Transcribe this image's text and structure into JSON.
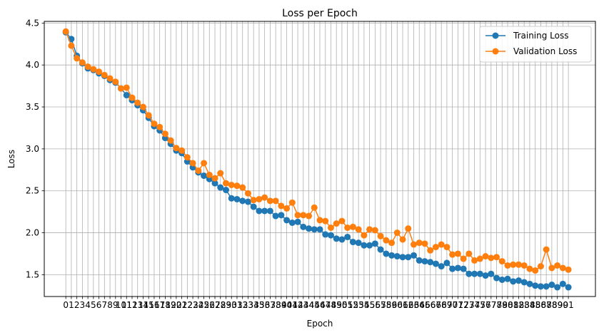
{
  "chart_data": {
    "type": "line",
    "title": "Loss per Epoch",
    "xlabel": "Epoch",
    "ylabel": "Loss",
    "ylim": [
      1.24,
      4.52
    ],
    "xlim": [
      -3.9,
      95.9
    ],
    "yticks": [
      1.5,
      2.0,
      2.5,
      3.0,
      3.5,
      4.0,
      4.5
    ],
    "grid": true,
    "legend_position": "top-right",
    "series": [
      {
        "name": "Training Loss",
        "color": "#1f77b4",
        "values": [
          4.39,
          4.31,
          4.11,
          4.02,
          3.96,
          3.94,
          3.9,
          3.87,
          3.82,
          3.79,
          3.72,
          3.64,
          3.58,
          3.52,
          3.46,
          3.37,
          3.27,
          3.22,
          3.13,
          3.06,
          2.98,
          2.95,
          2.85,
          2.78,
          2.72,
          2.68,
          2.64,
          2.59,
          2.54,
          2.51,
          2.41,
          2.4,
          2.38,
          2.37,
          2.31,
          2.26,
          2.26,
          2.26,
          2.2,
          2.21,
          2.15,
          2.12,
          2.13,
          2.07,
          2.05,
          2.04,
          2.04,
          1.98,
          1.97,
          1.93,
          1.92,
          1.95,
          1.89,
          1.88,
          1.85,
          1.85,
          1.87,
          1.8,
          1.75,
          1.73,
          1.72,
          1.71,
          1.71,
          1.73,
          1.67,
          1.66,
          1.65,
          1.63,
          1.6,
          1.64,
          1.57,
          1.58,
          1.57,
          1.51,
          1.51,
          1.51,
          1.49,
          1.51,
          1.46,
          1.44,
          1.45,
          1.42,
          1.43,
          1.41,
          1.39,
          1.37,
          1.36,
          1.36,
          1.38,
          1.35,
          1.39,
          1.35
        ]
      },
      {
        "name": "Validation Loss",
        "color": "#ff7f0e",
        "values": [
          4.4,
          4.23,
          4.08,
          4.03,
          3.98,
          3.95,
          3.92,
          3.88,
          3.84,
          3.8,
          3.72,
          3.73,
          3.61,
          3.55,
          3.5,
          3.4,
          3.3,
          3.26,
          3.18,
          3.1,
          3.01,
          2.98,
          2.9,
          2.83,
          2.74,
          2.83,
          2.69,
          2.65,
          2.71,
          2.59,
          2.57,
          2.56,
          2.54,
          2.47,
          2.39,
          2.4,
          2.42,
          2.38,
          2.38,
          2.32,
          2.29,
          2.36,
          2.21,
          2.21,
          2.2,
          2.3,
          2.15,
          2.14,
          2.06,
          2.11,
          2.14,
          2.06,
          2.07,
          2.04,
          1.97,
          2.04,
          2.03,
          1.96,
          1.91,
          1.88,
          2.0,
          1.92,
          2.05,
          1.86,
          1.88,
          1.87,
          1.79,
          1.83,
          1.86,
          1.83,
          1.74,
          1.75,
          1.69,
          1.75,
          1.67,
          1.69,
          1.72,
          1.7,
          1.71,
          1.66,
          1.61,
          1.62,
          1.62,
          1.61,
          1.57,
          1.55,
          1.6,
          1.8,
          1.58,
          1.61,
          1.58,
          1.56
        ]
      }
    ]
  }
}
